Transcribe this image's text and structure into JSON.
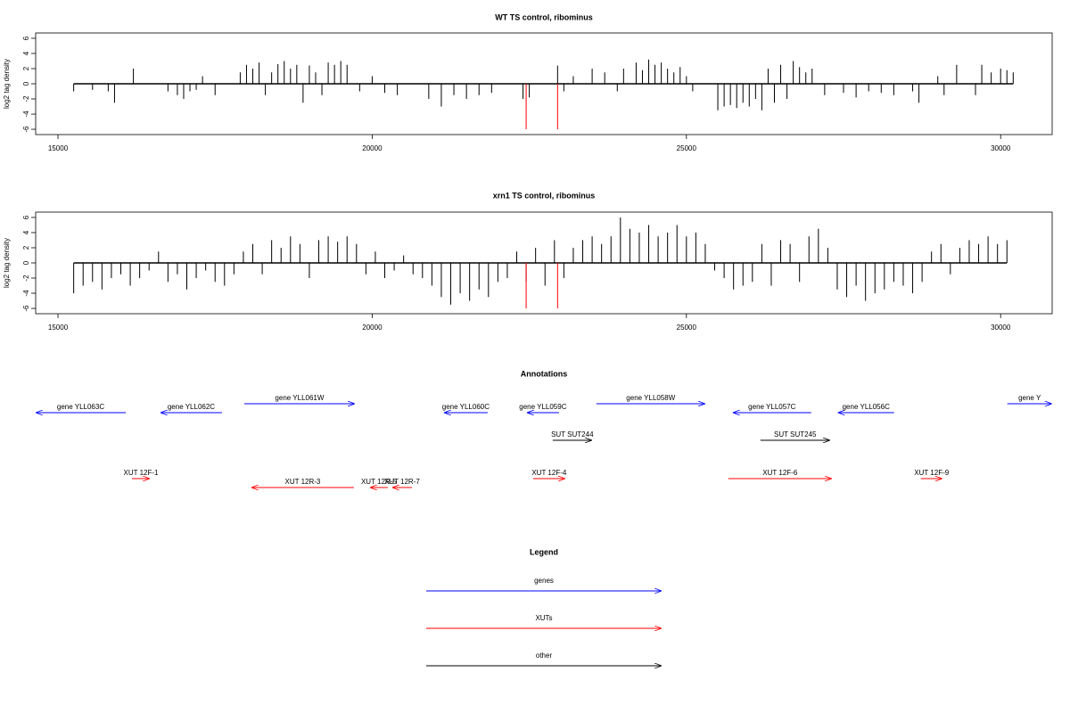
{
  "chart_data": [
    {
      "type": "spike",
      "title": "WT TS control, ribominus",
      "y_label": "log2 tag density",
      "xlim": [
        14645,
        30820
      ],
      "ylim": [
        -6.7,
        6.7
      ],
      "xticks": [
        15000,
        20000,
        25000,
        30000
      ],
      "yticks": [
        -6,
        -4,
        -2,
        0,
        2,
        4,
        6
      ],
      "series": [
        {
          "color": "#000000",
          "x": [
            15250,
            15550,
            15800,
            15900,
            16200,
            16750,
            16900,
            17000,
            17100,
            17200,
            17300,
            17500,
            17900,
            18000,
            18100,
            18200,
            18300,
            18400,
            18500,
            18600,
            18700,
            18800,
            18900,
            19000,
            19100,
            19200,
            19300,
            19400,
            19500,
            19600,
            19800,
            20000,
            20200,
            20400,
            20900,
            21100,
            21300,
            21500,
            21700,
            21900,
            22400,
            22500,
            22950,
            23050,
            23200,
            23500,
            23700,
            23900,
            24000,
            24200,
            24300,
            24400,
            24500,
            24600,
            24700,
            24800,
            24900,
            25000,
            25100,
            25500,
            25600,
            25700,
            25800,
            25900,
            26000,
            26100,
            26200,
            26300,
            26400,
            26500,
            26600,
            26700,
            26800,
            26900,
            27000,
            27200,
            27500,
            27700,
            27900,
            28100,
            28300,
            28600,
            28700,
            29000,
            29100,
            29300,
            29600,
            29700,
            29850,
            30000,
            30100,
            30200
          ],
          "values": [
            -1,
            -0.8,
            -1,
            -2.5,
            2,
            -1,
            -1.5,
            -2,
            -1,
            -0.8,
            1,
            -1.5,
            1.5,
            2.5,
            2,
            2.8,
            -1.5,
            1.5,
            2.6,
            3,
            2,
            2.5,
            -2.5,
            2.4,
            1.5,
            -1.5,
            2.8,
            2.5,
            3,
            2.5,
            -1,
            1,
            -1.2,
            -1.5,
            -2,
            -3,
            -1.5,
            -2,
            -1.5,
            -1.2,
            -2,
            -1.8,
            2.4,
            -1,
            1,
            2,
            1.5,
            -1,
            2,
            2.8,
            1.8,
            3.2,
            2.5,
            2.8,
            2,
            1.5,
            2.2,
            1,
            -1,
            -3.5,
            -3,
            -2.8,
            -3.2,
            -2.5,
            -3,
            -2,
            -3.5,
            2,
            -2.5,
            2.5,
            -2,
            3,
            2.2,
            1.5,
            2,
            -1.5,
            -1.2,
            -1.8,
            -1,
            -1.2,
            -1.5,
            -1,
            -2.5,
            1,
            -1.5,
            2.5,
            -1.5,
            2.5,
            1.5,
            2,
            1.8,
            1.5
          ]
        },
        {
          "color": "#ff0000",
          "x": [
            22450,
            22950
          ],
          "values": [
            -6,
            -6
          ]
        }
      ]
    },
    {
      "type": "spike",
      "title": "xrn1 TS control, ribominus",
      "y_label": "log2 tag density",
      "xlim": [
        14645,
        30820
      ],
      "ylim": [
        -6.7,
        6.7
      ],
      "xticks": [
        15000,
        20000,
        25000,
        30000
      ],
      "yticks": [
        -6,
        -4,
        -2,
        0,
        2,
        4,
        6
      ],
      "series": [
        {
          "color": "#000000",
          "x": [
            15250,
            15400,
            15550,
            15700,
            15850,
            16000,
            16150,
            16300,
            16450,
            16600,
            16750,
            16900,
            17050,
            17200,
            17350,
            17500,
            17650,
            17800,
            17950,
            18100,
            18250,
            18400,
            18550,
            18700,
            18850,
            19000,
            19150,
            19300,
            19450,
            19600,
            19750,
            19900,
            20050,
            20200,
            20350,
            20500,
            20650,
            20800,
            20950,
            21100,
            21250,
            21400,
            21550,
            21700,
            21850,
            22000,
            22150,
            22300,
            22450,
            22600,
            22750,
            22900,
            23050,
            23200,
            23350,
            23500,
            23650,
            23800,
            23950,
            24100,
            24250,
            24400,
            24550,
            24700,
            24850,
            25000,
            25150,
            25300,
            25450,
            25600,
            25750,
            25900,
            26050,
            26200,
            26350,
            26500,
            26650,
            26800,
            26950,
            27100,
            27250,
            27400,
            27550,
            27700,
            27850,
            28000,
            28150,
            28300,
            28450,
            28600,
            28750,
            28900,
            29050,
            29200,
            29350,
            29500,
            29650,
            29800,
            29950,
            30100
          ],
          "values": [
            -4,
            -3,
            -2.5,
            -3.5,
            -2,
            -1.5,
            -3,
            -2,
            -1,
            1.5,
            -2.5,
            -1.5,
            -3.5,
            -2,
            -1,
            -2.5,
            -3,
            -1.5,
            1.5,
            2.5,
            -1.5,
            3,
            2,
            3.5,
            2.5,
            -2,
            3,
            3.5,
            2.8,
            3.5,
            2.5,
            -1.5,
            1.5,
            -2,
            -1,
            1,
            -1.5,
            -2,
            -3,
            -4.5,
            -5.5,
            -4,
            -5,
            -3.5,
            -4.5,
            -2.5,
            -2,
            1.5,
            -2.5,
            2,
            -3,
            3,
            -2,
            2,
            3,
            3.5,
            2.5,
            3.5,
            6,
            4.5,
            4,
            5,
            3.5,
            4,
            5,
            3.5,
            4,
            2.5,
            -1,
            -2,
            -3.5,
            -3,
            -2.5,
            2.5,
            -3,
            3,
            2.5,
            -2.5,
            3.5,
            4.5,
            2,
            -3.5,
            -4.5,
            -3,
            -5,
            -4,
            -3.5,
            -2.5,
            -3,
            -4,
            -2.5,
            1.5,
            2.5,
            -1.5,
            2,
            3,
            2.5,
            3.5,
            2.5,
            3
          ]
        },
        {
          "color": "#ff0000",
          "x": [
            22450,
            22950
          ],
          "values": [
            -6,
            -6
          ]
        }
      ]
    }
  ],
  "annotations": {
    "title": "Annotations",
    "items": [
      {
        "label": "gene YLL063C",
        "start": 16078,
        "end": 14645,
        "color": "#0000ff"
      },
      {
        "label": "gene YLL062C",
        "start": 17610,
        "end": 16631,
        "color": "#0000ff"
      },
      {
        "label": "gene YLL061W",
        "start": 17965,
        "end": 19723,
        "color": "#0000ff"
      },
      {
        "label": "gene YLL060C",
        "start": 21837,
        "end": 21142,
        "color": "#0000ff"
      },
      {
        "label": "gene YLL059C",
        "start": 22972,
        "end": 22461,
        "color": "#0000ff"
      },
      {
        "label": "gene YLL058W",
        "start": 23567,
        "end": 25298,
        "color": "#0000ff"
      },
      {
        "label": "gene YLL057C",
        "start": 26986,
        "end": 25738,
        "color": "#0000ff"
      },
      {
        "label": "gene YLL056C",
        "start": 28305,
        "end": 27411,
        "color": "#0000ff"
      },
      {
        "label": "gene Y",
        "start": 30106,
        "end": 30816,
        "color": "#0000ff"
      },
      {
        "label": "SUT SUT244",
        "start": 22872,
        "end": 23496,
        "color": "#000000"
      },
      {
        "label": "SUT SUT245",
        "start": 26177,
        "end": 27284,
        "color": "#000000"
      },
      {
        "label": "XUT 12F-1",
        "start": 16177,
        "end": 16461,
        "color": "#ff0000"
      },
      {
        "label": "XUT 12R-3",
        "start": 19709,
        "end": 18078,
        "color": "#ff0000"
      },
      {
        "label": "XUT 12R-5",
        "start": 20248,
        "end": 19965,
        "color": "#ff0000"
      },
      {
        "label": "XUT 12R-7",
        "start": 20631,
        "end": 20319,
        "color": "#ff0000"
      },
      {
        "label": "XUT 12F-4",
        "start": 22560,
        "end": 23071,
        "color": "#ff0000"
      },
      {
        "label": "XUT 12F-6",
        "start": 25667,
        "end": 27312,
        "color": "#ff0000"
      },
      {
        "label": "XUT 12F-9",
        "start": 28730,
        "end": 29071,
        "color": "#ff0000"
      }
    ]
  },
  "legend": {
    "title": "Legend",
    "items": [
      {
        "label": "genes",
        "color": "#0000ff"
      },
      {
        "label": "XUTs",
        "color": "#ff0000"
      },
      {
        "label": "other",
        "color": "#000000"
      }
    ]
  }
}
